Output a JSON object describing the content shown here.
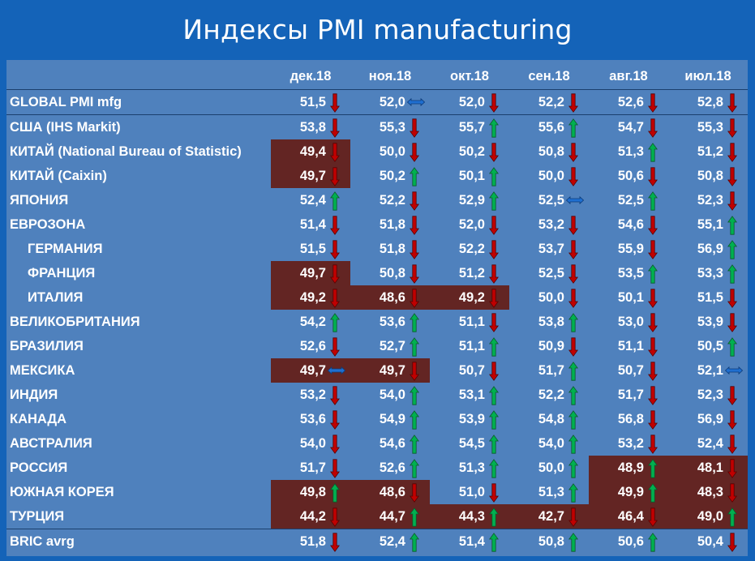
{
  "title": "Индексы PMI manufacturing",
  "colors": {
    "background": "#1463b8",
    "panel": "#4f81bd",
    "highlight": "#632523",
    "up": "#00b050",
    "down": "#c00000",
    "flat": "#1f6fd0"
  },
  "columns": [
    "дек.18",
    "ноя.18",
    "окт.18",
    "сен.18",
    "авг.18",
    "июл.18"
  ],
  "rows": [
    {
      "name": "GLOBAL PMI mfg",
      "indent": false,
      "cells": [
        {
          "v": "51,5",
          "a": "down"
        },
        {
          "v": "52,0",
          "a": "flat"
        },
        {
          "v": "52,0",
          "a": "down"
        },
        {
          "v": "52,2",
          "a": "down"
        },
        {
          "v": "52,6",
          "a": "down"
        },
        {
          "v": "52,8",
          "a": "down"
        }
      ]
    },
    {
      "name": "США (IHS Markit)",
      "indent": false,
      "cells": [
        {
          "v": "53,8",
          "a": "down"
        },
        {
          "v": "55,3",
          "a": "down"
        },
        {
          "v": "55,7",
          "a": "up"
        },
        {
          "v": "55,6",
          "a": "up"
        },
        {
          "v": "54,7",
          "a": "down"
        },
        {
          "v": "55,3",
          "a": "down"
        }
      ]
    },
    {
      "name": "КИТАЙ (National Bureau of Statistic)",
      "indent": false,
      "cells": [
        {
          "v": "49,4",
          "a": "down",
          "hl": true
        },
        {
          "v": "50,0",
          "a": "down"
        },
        {
          "v": "50,2",
          "a": "down"
        },
        {
          "v": "50,8",
          "a": "down"
        },
        {
          "v": "51,3",
          "a": "up"
        },
        {
          "v": "51,2",
          "a": "down"
        }
      ]
    },
    {
      "name": "КИТАЙ (Caixin)",
      "indent": false,
      "cells": [
        {
          "v": "49,7",
          "a": "down",
          "hl": true
        },
        {
          "v": "50,2",
          "a": "up"
        },
        {
          "v": "50,1",
          "a": "up"
        },
        {
          "v": "50,0",
          "a": "down"
        },
        {
          "v": "50,6",
          "a": "down"
        },
        {
          "v": "50,8",
          "a": "down"
        }
      ]
    },
    {
      "name": "ЯПОНИЯ",
      "indent": false,
      "cells": [
        {
          "v": "52,4",
          "a": "up"
        },
        {
          "v": "52,2",
          "a": "down"
        },
        {
          "v": "52,9",
          "a": "up"
        },
        {
          "v": "52,5",
          "a": "flat"
        },
        {
          "v": "52,5",
          "a": "up"
        },
        {
          "v": "52,3",
          "a": "down"
        }
      ]
    },
    {
      "name": "ЕВРОЗОНА",
      "indent": false,
      "cells": [
        {
          "v": "51,4",
          "a": "down"
        },
        {
          "v": "51,8",
          "a": "down"
        },
        {
          "v": "52,0",
          "a": "down"
        },
        {
          "v": "53,2",
          "a": "down"
        },
        {
          "v": "54,6",
          "a": "down"
        },
        {
          "v": "55,1",
          "a": "up"
        }
      ]
    },
    {
      "name": "ГЕРМАНИЯ",
      "indent": true,
      "cells": [
        {
          "v": "51,5",
          "a": "down"
        },
        {
          "v": "51,8",
          "a": "down"
        },
        {
          "v": "52,2",
          "a": "down"
        },
        {
          "v": "53,7",
          "a": "down"
        },
        {
          "v": "55,9",
          "a": "down"
        },
        {
          "v": "56,9",
          "a": "up"
        }
      ]
    },
    {
      "name": "ФРАНЦИЯ",
      "indent": true,
      "cells": [
        {
          "v": "49,7",
          "a": "down",
          "hl": true
        },
        {
          "v": "50,8",
          "a": "down"
        },
        {
          "v": "51,2",
          "a": "down"
        },
        {
          "v": "52,5",
          "a": "down"
        },
        {
          "v": "53,5",
          "a": "up"
        },
        {
          "v": "53,3",
          "a": "up"
        }
      ]
    },
    {
      "name": "ИТАЛИЯ",
      "indent": true,
      "cells": [
        {
          "v": "49,2",
          "a": "down",
          "hl": true
        },
        {
          "v": "48,6",
          "a": "down",
          "hl": true
        },
        {
          "v": "49,2",
          "a": "down",
          "hl": true
        },
        {
          "v": "50,0",
          "a": "down"
        },
        {
          "v": "50,1",
          "a": "down"
        },
        {
          "v": "51,5",
          "a": "down"
        }
      ]
    },
    {
      "name": "ВЕЛИКОБРИТАНИЯ",
      "indent": false,
      "cells": [
        {
          "v": "54,2",
          "a": "up"
        },
        {
          "v": "53,6",
          "a": "up"
        },
        {
          "v": "51,1",
          "a": "down"
        },
        {
          "v": "53,8",
          "a": "up"
        },
        {
          "v": "53,0",
          "a": "down"
        },
        {
          "v": "53,9",
          "a": "down"
        }
      ]
    },
    {
      "name": "БРАЗИЛИЯ",
      "indent": false,
      "cells": [
        {
          "v": "52,6",
          "a": "down"
        },
        {
          "v": "52,7",
          "a": "up"
        },
        {
          "v": "51,1",
          "a": "up"
        },
        {
          "v": "50,9",
          "a": "down"
        },
        {
          "v": "51,1",
          "a": "down"
        },
        {
          "v": "50,5",
          "a": "up"
        }
      ]
    },
    {
      "name": "МЕКСИКА",
      "indent": false,
      "cells": [
        {
          "v": "49,7",
          "a": "flat",
          "hl": true
        },
        {
          "v": "49,7",
          "a": "down",
          "hl": true
        },
        {
          "v": "50,7",
          "a": "down"
        },
        {
          "v": "51,7",
          "a": "up"
        },
        {
          "v": "50,7",
          "a": "down"
        },
        {
          "v": "52,1",
          "a": "flat"
        }
      ]
    },
    {
      "name": "ИНДИЯ",
      "indent": false,
      "cells": [
        {
          "v": "53,2",
          "a": "down"
        },
        {
          "v": "54,0",
          "a": "up"
        },
        {
          "v": "53,1",
          "a": "up"
        },
        {
          "v": "52,2",
          "a": "up"
        },
        {
          "v": "51,7",
          "a": "down"
        },
        {
          "v": "52,3",
          "a": "down"
        }
      ]
    },
    {
      "name": "КАНАДА",
      "indent": false,
      "cells": [
        {
          "v": "53,6",
          "a": "down"
        },
        {
          "v": "54,9",
          "a": "up"
        },
        {
          "v": "53,9",
          "a": "up"
        },
        {
          "v": "54,8",
          "a": "up"
        },
        {
          "v": "56,8",
          "a": "down"
        },
        {
          "v": "56,9",
          "a": "down"
        }
      ]
    },
    {
      "name": "АВСТРАЛИЯ",
      "indent": false,
      "cells": [
        {
          "v": "54,0",
          "a": "down"
        },
        {
          "v": "54,6",
          "a": "up"
        },
        {
          "v": "54,5",
          "a": "up"
        },
        {
          "v": "54,0",
          "a": "up"
        },
        {
          "v": "53,2",
          "a": "down"
        },
        {
          "v": "52,4",
          "a": "down"
        }
      ]
    },
    {
      "name": "РОССИЯ",
      "indent": false,
      "cells": [
        {
          "v": "51,7",
          "a": "down"
        },
        {
          "v": "52,6",
          "a": "up"
        },
        {
          "v": "51,3",
          "a": "up"
        },
        {
          "v": "50,0",
          "a": "up"
        },
        {
          "v": "48,9",
          "a": "up",
          "hl": true
        },
        {
          "v": "48,1",
          "a": "down",
          "hl": true
        }
      ]
    },
    {
      "name": "ЮЖНАЯ КОРЕЯ",
      "indent": false,
      "cells": [
        {
          "v": "49,8",
          "a": "up",
          "hl": true
        },
        {
          "v": "48,6",
          "a": "down",
          "hl": true
        },
        {
          "v": "51,0",
          "a": "down"
        },
        {
          "v": "51,3",
          "a": "up"
        },
        {
          "v": "49,9",
          "a": "up",
          "hl": true
        },
        {
          "v": "48,3",
          "a": "down",
          "hl": true
        }
      ]
    },
    {
      "name": "ТУРЦИЯ",
      "indent": false,
      "cells": [
        {
          "v": "44,2",
          "a": "down",
          "hl": true
        },
        {
          "v": "44,7",
          "a": "up",
          "hl": true
        },
        {
          "v": "44,3",
          "a": "up",
          "hl": true
        },
        {
          "v": "42,7",
          "a": "down",
          "hl": true
        },
        {
          "v": "46,4",
          "a": "down",
          "hl": true
        },
        {
          "v": "49,0",
          "a": "up",
          "hl": true
        }
      ]
    },
    {
      "name": "BRIC avrg",
      "indent": false,
      "cells": [
        {
          "v": "51,8",
          "a": "down"
        },
        {
          "v": "52,4",
          "a": "up"
        },
        {
          "v": "51,4",
          "a": "up"
        },
        {
          "v": "50,8",
          "a": "up"
        },
        {
          "v": "50,6",
          "a": "up"
        },
        {
          "v": "50,4",
          "a": "down"
        }
      ]
    }
  ]
}
